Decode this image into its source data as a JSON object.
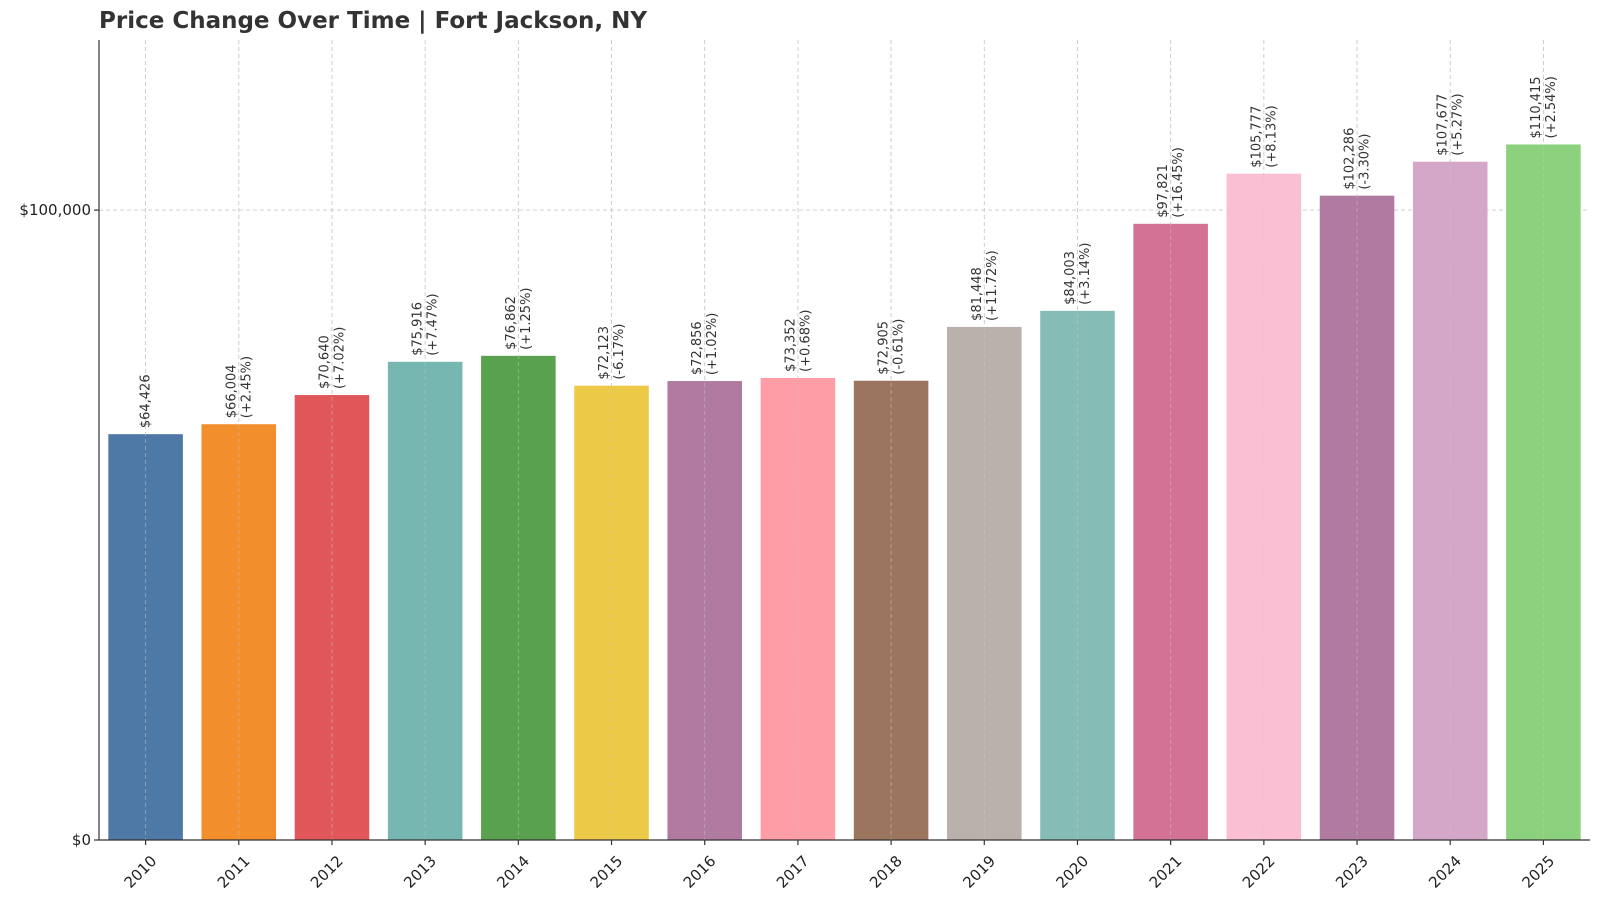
{
  "chart_data": {
    "type": "bar",
    "title": "Price Change Over Time | Fort Jackson, NY",
    "xlabel": "",
    "ylabel": "",
    "categories": [
      "2010",
      "2011",
      "2012",
      "2013",
      "2014",
      "2015",
      "2016",
      "2017",
      "2018",
      "2019",
      "2020",
      "2021",
      "2022",
      "2023",
      "2024",
      "2025"
    ],
    "values": [
      64426,
      66004,
      70640,
      75916,
      76862,
      72123,
      72856,
      73352,
      72905,
      81448,
      84003,
      97821,
      105777,
      102286,
      107677,
      110415
    ],
    "value_labels": [
      "$64,426",
      "$66,004",
      "$70,640",
      "$75,916",
      "$76,862",
      "$72,123",
      "$72,856",
      "$73,352",
      "$72,905",
      "$81,448",
      "$84,003",
      "$97,821",
      "$105,777",
      "$102,286",
      "$107,677",
      "$110,415"
    ],
    "change_labels": [
      "",
      "(+2.45%)",
      "(+7.02%)",
      "(+7.47%)",
      "(+1.25%)",
      "(-6.17%)",
      "(+1.02%)",
      "(+0.68%)",
      "(-0.61%)",
      "(+11.72%)",
      "(+3.14%)",
      "(+16.45%)",
      "(+8.13%)",
      "(-3.30%)",
      "(+5.27%)",
      "(+2.54%)"
    ],
    "colors": [
      "#4e79a7",
      "#f28e2b",
      "#e15759",
      "#76b7b2",
      "#59a14f",
      "#edc948",
      "#b07aa1",
      "#ff9da7",
      "#9c755f",
      "#bab0ac",
      "#86bcb6",
      "#d37295",
      "#fabfd2",
      "#b07aa1",
      "#d4a6c8",
      "#8cd17d"
    ],
    "ylim": [
      0,
      127000
    ],
    "yticks": [
      0,
      100000
    ],
    "ytick_labels": [
      "$0",
      "$100,000"
    ],
    "grid": true,
    "legend": "none"
  }
}
